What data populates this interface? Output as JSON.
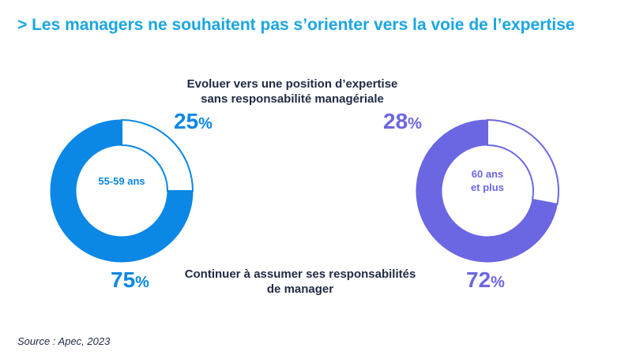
{
  "title": "> Les managers ne souhaitent pas s’orienter vers la voie de l’expertise",
  "labels": {
    "top_line1": "Evoluer vers une position d’expertise",
    "top_line2": "sans responsabilité managériale",
    "bottom_line1": "Continuer à assumer ses responsabilités",
    "bottom_line2": "de manager"
  },
  "source": "Source : Apec, 2023",
  "chart_data": [
    {
      "type": "pie",
      "group": "55-59 ans",
      "categories": [
        "Evoluer vers une position d’expertise sans responsabilité managériale",
        "Continuer à assumer ses responsabilités de manager"
      ],
      "values": [
        25,
        75
      ],
      "labels": [
        "25",
        "75"
      ],
      "unit": "%",
      "color": "#0b87e6"
    },
    {
      "type": "pie",
      "group_line1": "60 ans",
      "group_line2": "et plus",
      "categories": [
        "Evoluer vers une position d’expertise sans responsabilité managériale",
        "Continuer à assumer ses responsabilités de manager"
      ],
      "values": [
        28,
        72
      ],
      "labels": [
        "28",
        "72"
      ],
      "unit": "%",
      "color": "#6b67e3"
    }
  ]
}
